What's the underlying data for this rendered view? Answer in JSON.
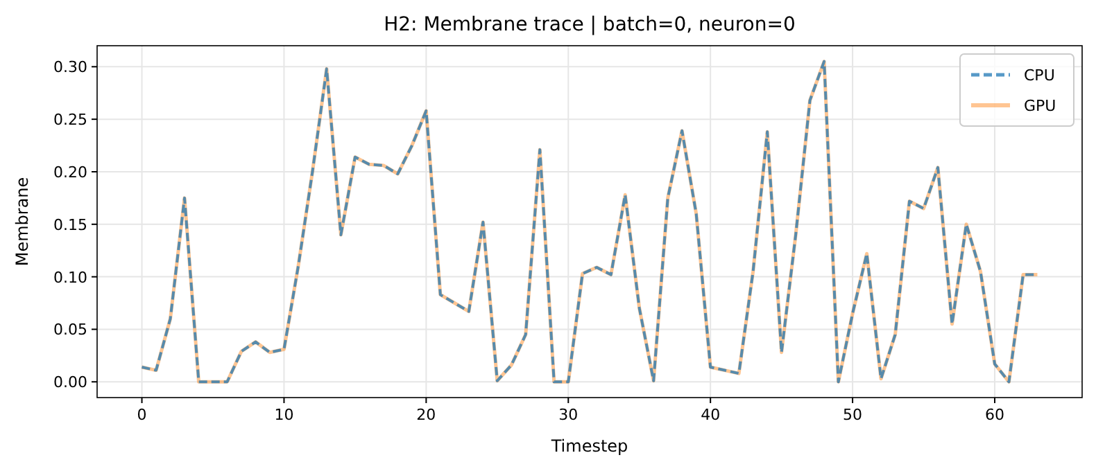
{
  "chart_data": {
    "type": "line",
    "title": "H2: Membrane trace | batch=0, neuron=0",
    "xlabel": "Timestep",
    "ylabel": "Membrane",
    "x": [
      0,
      1,
      2,
      3,
      4,
      5,
      6,
      7,
      8,
      9,
      10,
      11,
      12,
      13,
      14,
      15,
      16,
      17,
      18,
      19,
      20,
      21,
      22,
      23,
      24,
      25,
      26,
      27,
      28,
      29,
      30,
      31,
      32,
      33,
      34,
      35,
      36,
      37,
      38,
      39,
      40,
      41,
      42,
      43,
      44,
      45,
      46,
      47,
      48,
      49,
      50,
      51,
      52,
      53,
      54,
      55,
      56,
      57,
      58,
      59,
      60,
      61,
      62,
      63
    ],
    "series": [
      {
        "name": "CPU",
        "color": "#1f77b4",
        "line_style": "dashed",
        "values": [
          0.014,
          0.011,
          0.06,
          0.175,
          0,
          0,
          0,
          0.029,
          0.038,
          0.028,
          0.031,
          0.11,
          0.2,
          0.298,
          0.14,
          0.214,
          0.207,
          0.206,
          0.198,
          0.225,
          0.258,
          0.083,
          0.075,
          0.067,
          0.152,
          0.001,
          0.016,
          0.045,
          0.221,
          0,
          0,
          0.103,
          0.109,
          0.102,
          0.178,
          0.07,
          0.001,
          0.175,
          0.239,
          0.16,
          0.014,
          0.011,
          0.008,
          0.105,
          0.238,
          0.028,
          0.14,
          0.268,
          0.305,
          0,
          0.065,
          0.122,
          0.003,
          0.045,
          0.172,
          0.165,
          0.204,
          0.055,
          0.15,
          0.105,
          0.017,
          0,
          0.102,
          0.102
        ]
      },
      {
        "name": "GPU",
        "color": "#ff7f0e",
        "line_style": "solid",
        "values": [
          0.014,
          0.011,
          0.06,
          0.175,
          0,
          0,
          0,
          0.029,
          0.038,
          0.028,
          0.031,
          0.11,
          0.2,
          0.298,
          0.14,
          0.214,
          0.207,
          0.206,
          0.198,
          0.225,
          0.258,
          0.083,
          0.075,
          0.067,
          0.152,
          0.001,
          0.016,
          0.045,
          0.221,
          0,
          0,
          0.103,
          0.109,
          0.102,
          0.178,
          0.07,
          0.001,
          0.175,
          0.239,
          0.16,
          0.014,
          0.011,
          0.008,
          0.105,
          0.238,
          0.028,
          0.14,
          0.268,
          0.305,
          0,
          0.065,
          0.122,
          0.003,
          0.045,
          0.172,
          0.165,
          0.204,
          0.055,
          0.15,
          0.105,
          0.017,
          0,
          0.102,
          0.102
        ]
      }
    ],
    "xlim": [
      -3.15,
      66.15
    ],
    "xticks": [
      0,
      10,
      20,
      30,
      40,
      50,
      60
    ],
    "ylim": [
      -0.015,
      0.32
    ],
    "yticks": [
      {
        "value": 0,
        "label": "0.00"
      },
      {
        "value": 0.05,
        "label": "0.05"
      },
      {
        "value": 0.1,
        "label": "0.10"
      },
      {
        "value": 0.15,
        "label": "0.15"
      },
      {
        "value": 0.2,
        "label": "0.20"
      },
      {
        "value": 0.25,
        "label": "0.25"
      },
      {
        "value": 0.3,
        "label": "0.30"
      }
    ],
    "grid": true,
    "legend": "top right",
    "marker": "none"
  }
}
